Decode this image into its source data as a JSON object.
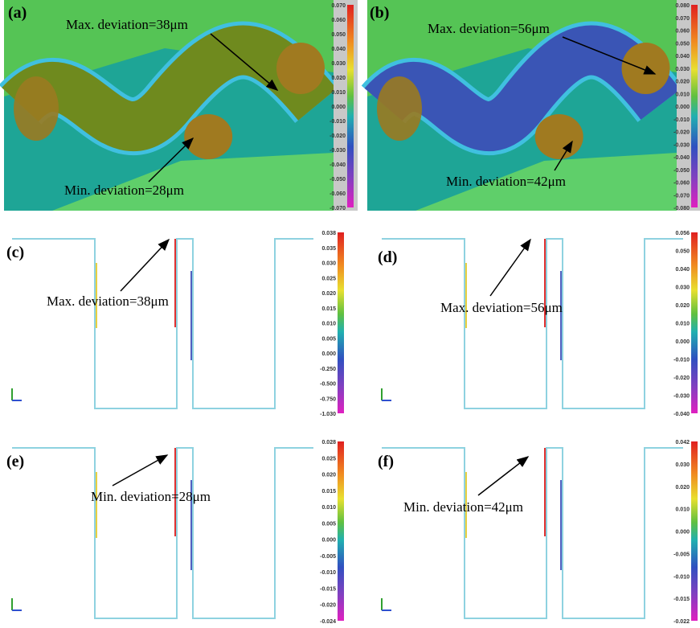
{
  "figure": {
    "panels": [
      {
        "label": "(a)",
        "annotations": [
          "Max. deviation=38μm",
          "Min. deviation=28μm"
        ],
        "scale": [
          "0.070",
          "0.060",
          "0.050",
          "0.040",
          "0.030",
          "0.020",
          "0.010",
          "0.000",
          "-0.010",
          "-0.020",
          "-0.030",
          "-0.040",
          "-0.050",
          "-0.060",
          "-0.070"
        ]
      },
      {
        "label": "(b)",
        "annotations": [
          "Max. deviation=56μm",
          "Min. deviation=42μm"
        ],
        "scale": [
          "0.080",
          "0.070",
          "0.060",
          "0.050",
          "0.040",
          "0.030",
          "0.020",
          "0.010",
          "0.000",
          "-0.010",
          "-0.020",
          "-0.030",
          "-0.040",
          "-0.050",
          "-0.060",
          "-0.070",
          "-0.080"
        ]
      },
      {
        "label": "(c)",
        "annotations": [
          "Max. deviation=38μm"
        ],
        "scale": [
          "0.038",
          "0.035",
          "0.030",
          "0.025",
          "0.020",
          "0.015",
          "0.010",
          "0.005",
          "0.000",
          "-0.250",
          "-0.500",
          "-0.750",
          "-1.030"
        ]
      },
      {
        "label": "(d)",
        "annotations": [
          "Max. deviation=56μm"
        ],
        "scale": [
          "0.056",
          "0.050",
          "0.040",
          "0.030",
          "0.020",
          "0.010",
          "0.000",
          "-0.010",
          "-0.020",
          "-0.030",
          "-0.040"
        ]
      },
      {
        "label": "(e)",
        "annotations": [
          "Min. deviation=28μm"
        ],
        "scale": [
          "0.028",
          "0.025",
          "0.020",
          "0.015",
          "0.010",
          "0.005",
          "0.000",
          "-0.005",
          "-0.010",
          "-0.015",
          "-0.020",
          "-0.024"
        ]
      },
      {
        "label": "(f)",
        "annotations": [
          "Min. deviation=42μm"
        ],
        "scale": [
          "0.042",
          "0.030",
          "0.020",
          "0.010",
          "0.000",
          "-0.005",
          "-0.010",
          "-0.015",
          "-0.022"
        ]
      }
    ]
  }
}
